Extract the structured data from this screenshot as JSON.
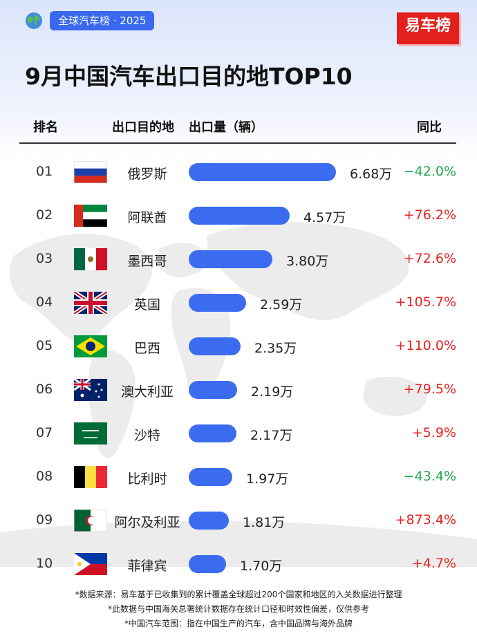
{
  "header": {
    "tag": "全球汽车榜 · 2025",
    "logo": "易车榜",
    "title": "9月中国汽车出口目的地TOP10",
    "columns": {
      "rank": "排名",
      "country": "出口目的地",
      "volume": "出口量（辆）",
      "yoy": "同比"
    }
  },
  "icons": {
    "globe": "globe-emoji-icon"
  },
  "colors": {
    "bar": "#3b6cf0",
    "increase": "#e8231f",
    "decrease": "#1fa84a",
    "tag": "#3a68ee",
    "logo": "#e3201d"
  },
  "chart_data": {
    "type": "bar",
    "orientation": "horizontal",
    "title": "9月中国汽车出口目的地TOP10",
    "unit": "万",
    "categories": [
      "俄罗斯",
      "阿联酋",
      "墨西哥",
      "英国",
      "巴西",
      "澳大利亚",
      "沙特",
      "比利时",
      "阿尔及利亚",
      "菲律宾"
    ],
    "ranks": [
      "01",
      "02",
      "03",
      "04",
      "05",
      "06",
      "07",
      "08",
      "09",
      "10"
    ],
    "values": [
      6.68,
      4.57,
      3.8,
      2.59,
      2.35,
      2.19,
      2.17,
      1.97,
      1.81,
      1.7
    ],
    "value_labels": [
      "6.68万",
      "4.57万",
      "3.80万",
      "2.59万",
      "2.35万",
      "2.19万",
      "2.17万",
      "1.97万",
      "1.81万",
      "1.70万"
    ],
    "yoy": [
      "−42.0%",
      "+76.2%",
      "+72.6%",
      "+105.7%",
      "+110.0%",
      "+79.5%",
      "+5.9%",
      "−43.4%",
      "+873.4%",
      "+4.7%"
    ],
    "flags": [
      "russia-flag-icon",
      "uae-flag-icon",
      "mexico-flag-icon",
      "uk-flag-icon",
      "brazil-flag-icon",
      "australia-flag-icon",
      "saudi-flag-icon",
      "belgium-flag-icon",
      "algeria-flag-icon",
      "philippines-flag-icon"
    ]
  },
  "footer": {
    "line1": "*数据来源：易车基于已收集到的累计覆盖全球超过200个国家和地区的入关数据进行整理",
    "line2": "*此数据与中国海关总署统计数据存在统计口径和时效性偏差，仅供参考",
    "line3": "*中国汽车范围：指在中国生产的汽车，含中国品牌与海外品牌"
  }
}
